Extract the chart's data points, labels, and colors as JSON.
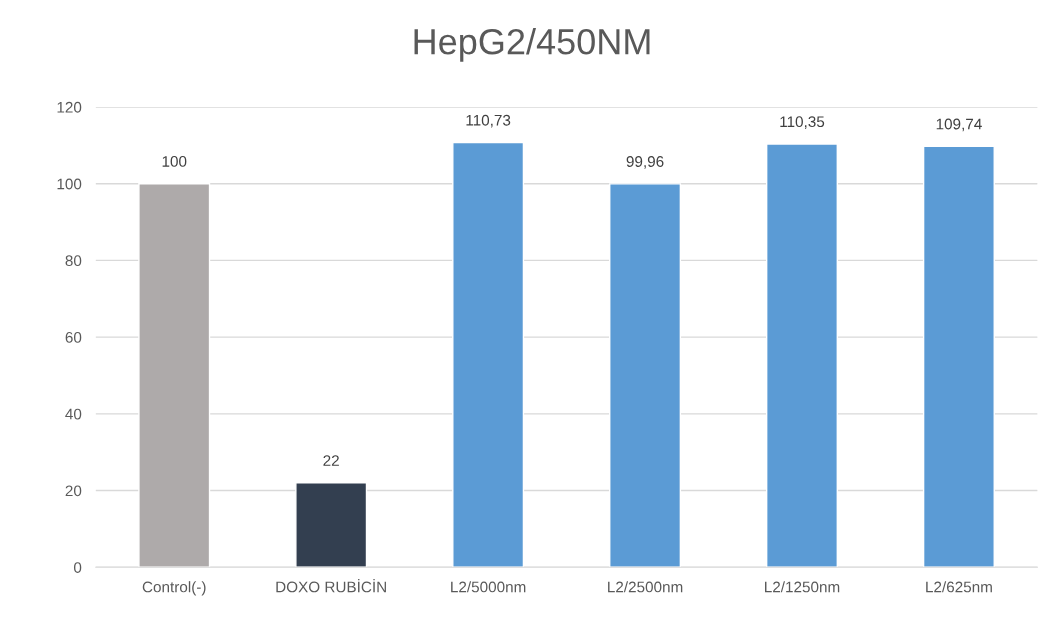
{
  "chart_data": {
    "type": "bar",
    "title": "HepG2/450NM",
    "categories": [
      "Control(-)",
      "DOXO RUBİCİN",
      "L2/5000nm",
      "L2/2500nm",
      "L2/1250nm",
      "L2/625nm"
    ],
    "values": [
      100,
      22,
      110.73,
      99.96,
      110.35,
      109.74
    ],
    "value_labels": [
      "100",
      "22",
      "110,73",
      "99,96",
      "110,35",
      "109,74"
    ],
    "colors": [
      "#aeaaaa",
      "#333f50",
      "#5b9bd5",
      "#5b9bd5",
      "#5b9bd5",
      "#5b9bd5"
    ],
    "ylim": [
      0,
      120
    ],
    "yticks": [
      0,
      20,
      40,
      60,
      80,
      100,
      120
    ],
    "grid": "y",
    "legend": false
  }
}
